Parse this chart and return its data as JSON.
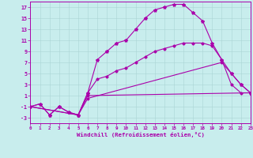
{
  "xlabel": "Windchill (Refroidissement éolien,°C)",
  "bg_color": "#c8eded",
  "grid_color": "#aad4d4",
  "line_color": "#aa00aa",
  "xlim": [
    0,
    23
  ],
  "ylim": [
    -4,
    18
  ],
  "xticks": [
    0,
    1,
    2,
    3,
    4,
    5,
    6,
    7,
    8,
    9,
    10,
    11,
    12,
    13,
    14,
    15,
    16,
    17,
    18,
    19,
    20,
    21,
    22,
    23
  ],
  "yticks": [
    -3,
    -1,
    1,
    3,
    5,
    7,
    9,
    11,
    13,
    15,
    17
  ],
  "line1_x": [
    0,
    1,
    2,
    3,
    4,
    5,
    6,
    7,
    8,
    9,
    10,
    11,
    12,
    13,
    14,
    15,
    16,
    17,
    18,
    19,
    20,
    21,
    22,
    23
  ],
  "line1_y": [
    -1,
    -0.5,
    -2.5,
    -1,
    -2,
    -2.5,
    1.5,
    7.5,
    9,
    10.5,
    11,
    13,
    15,
    16.5,
    17,
    17.5,
    17.5,
    16,
    14.5,
    10.5,
    7.5,
    5,
    3,
    1.5
  ],
  "line2_x": [
    0,
    1,
    2,
    3,
    4,
    5,
    6,
    7,
    8,
    9,
    10,
    11,
    12,
    13,
    14,
    15,
    16,
    17,
    18,
    19,
    20,
    21,
    22,
    23
  ],
  "line2_y": [
    -1,
    -0.5,
    -2.5,
    -1,
    -2,
    -2.5,
    1.5,
    4,
    4.5,
    5.5,
    6,
    7,
    8,
    9,
    9.5,
    10,
    10.5,
    10.5,
    10.5,
    10,
    7.5,
    3,
    1.5,
    1.5
  ],
  "line3_x": [
    0,
    5,
    6,
    23
  ],
  "line3_y": [
    -1,
    -2.5,
    1.0,
    1.5
  ],
  "line4_x": [
    0,
    5,
    6,
    20,
    21,
    22,
    23
  ],
  "line4_y": [
    -1,
    -2.5,
    0.5,
    7,
    5,
    3,
    1.5
  ]
}
